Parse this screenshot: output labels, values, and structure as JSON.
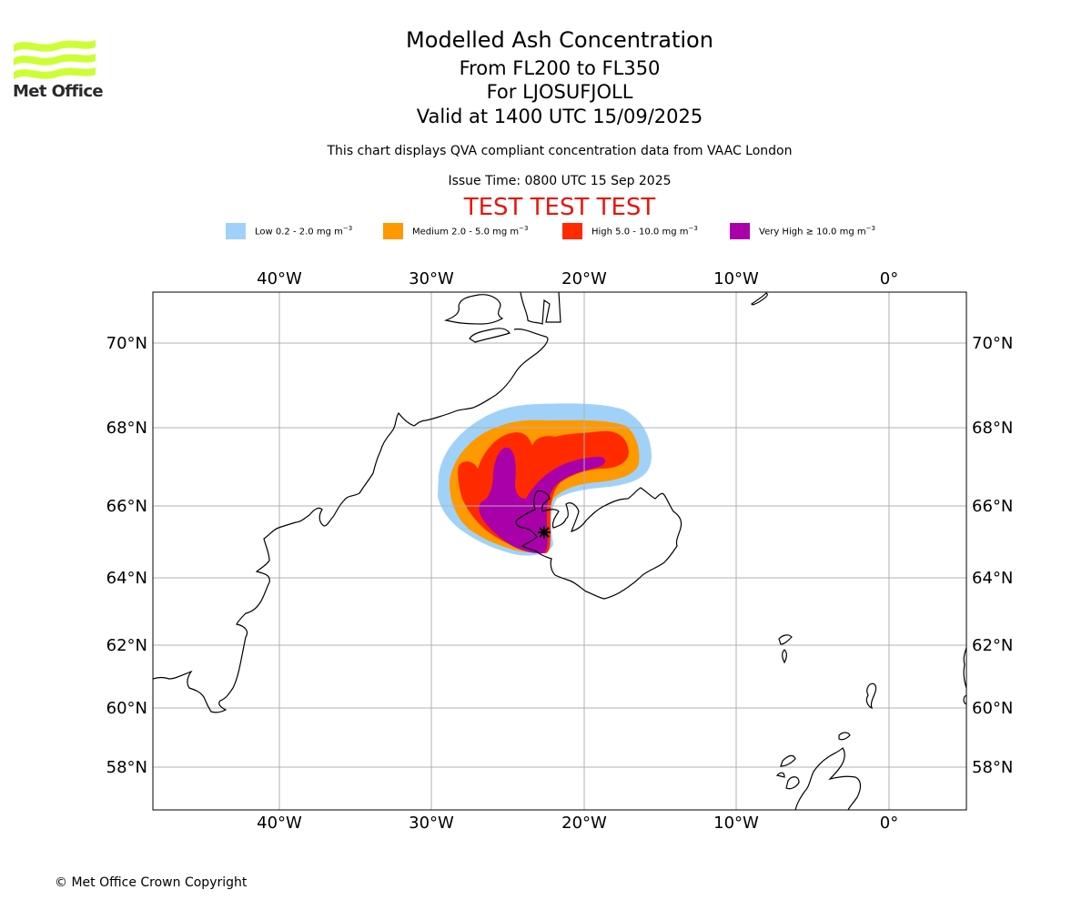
{
  "logo": {
    "text": "Met Office",
    "icon": "met-office-wave-logo",
    "color": "#ccff33"
  },
  "title": {
    "line1": "Modelled Ash Concentration",
    "line2": "From FL200 to FL350",
    "line3": "For LJOSUFJOLL",
    "line4": "Valid at 1400 UTC 15/09/2025"
  },
  "subtitle": "This chart displays QVA compliant concentration data from VAAC London",
  "issue_time": "Issue Time: 0800 UTC 15 Sep 2025",
  "test_banner": "TEST TEST TEST",
  "legend": [
    {
      "label": "Low 0.2 - 2.0 mg m",
      "unit_exp": "−3",
      "color": "#a0d2f9"
    },
    {
      "label": "Medium 2.0 - 5.0 mg m",
      "unit_exp": "−3",
      "color": "#ff9900"
    },
    {
      "label": "High 5.0 - 10.0 mg m",
      "unit_exp": "−3",
      "color": "#ff2a00"
    },
    {
      "label": "Very High  ≥  10.0 mg m",
      "unit_exp": "−3",
      "color": "#aa00aa"
    }
  ],
  "map": {
    "lon_ticks": [
      "40°W",
      "30°W",
      "20°W",
      "10°W",
      "0°"
    ],
    "lat_ticks": [
      "70°N",
      "68°N",
      "66°N",
      "64°N",
      "62°N",
      "60°N",
      "58°N"
    ],
    "volcano_icon": "volcano-star-icon"
  },
  "copyright": "© Met Office Crown Copyright"
}
